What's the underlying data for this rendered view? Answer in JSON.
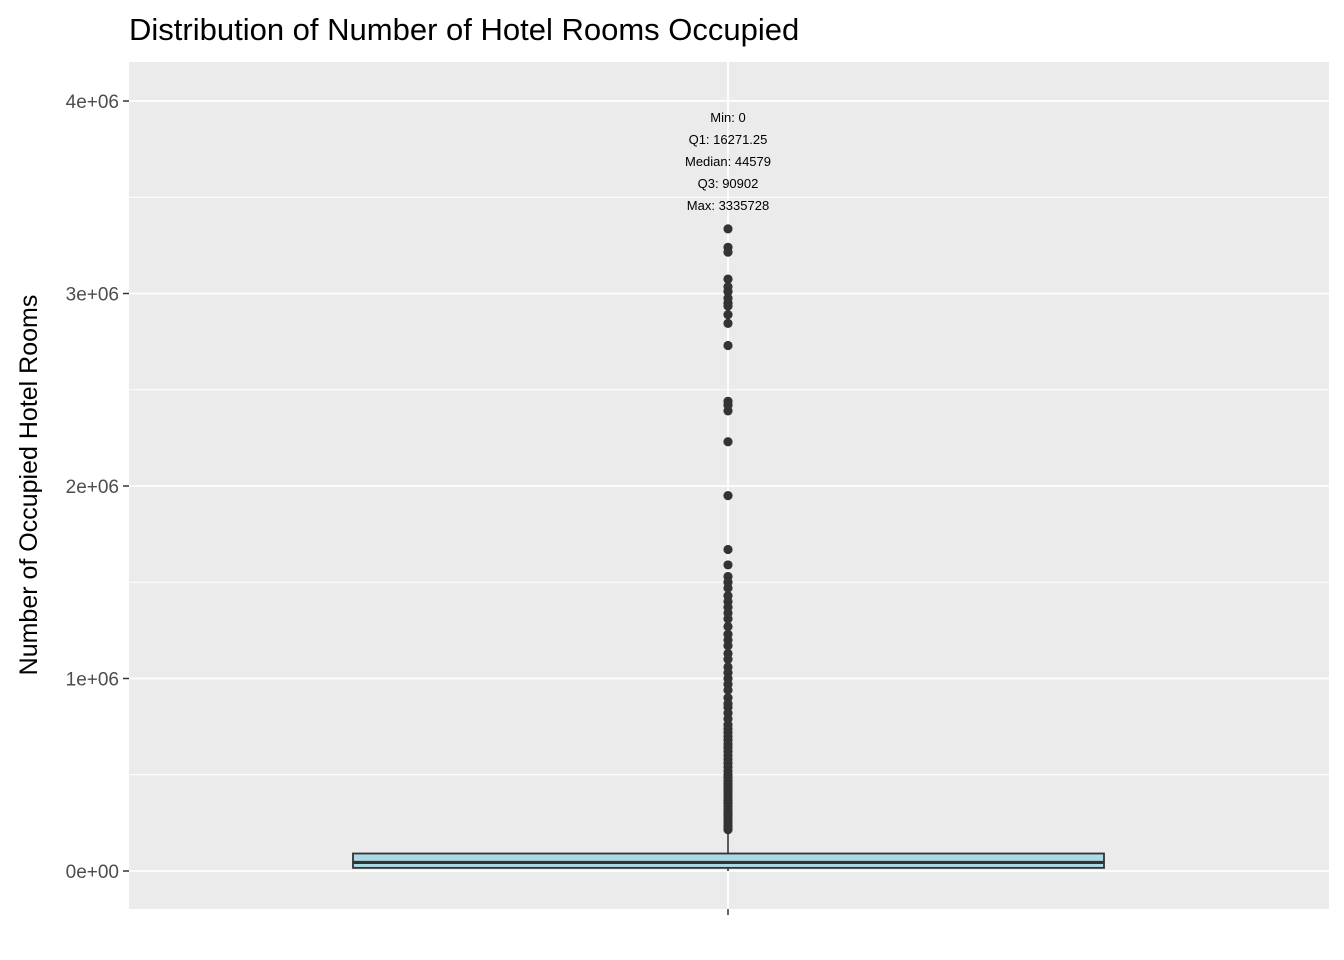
{
  "chart_data": {
    "type": "boxplot",
    "title": "Distribution of Number of Hotel Rooms Occupied",
    "xlabel": "",
    "ylabel": "Number of Occupied Hotel Rooms",
    "ylim": [
      -200000,
      4200000
    ],
    "y_ticks": [
      0,
      1000000,
      2000000,
      3000000,
      4000000
    ],
    "y_tick_labels": [
      "0e+00",
      "1e+06",
      "2e+06",
      "3e+06",
      "4e+06"
    ],
    "grid": true,
    "legend": "none",
    "colors": {
      "panel_bg": "#ebebeb",
      "grid_major": "#ffffff",
      "box_fill": "#add8e6",
      "box_stroke": "#333333",
      "outlier": "#333333"
    },
    "stats": {
      "min": 0,
      "q1": 16271.25,
      "median": 44579,
      "q3": 90902,
      "max": 3335728,
      "whisker_low": 0,
      "whisker_high": 202000
    },
    "annotation_lines": [
      "Min: 0",
      "Q1: 16271.25",
      "Median: 44579",
      "Q3: 90902",
      "Max: 3335728"
    ],
    "outliers": [
      3335728,
      3240000,
      3215000,
      3075000,
      3035000,
      3010000,
      2975000,
      2950000,
      2935000,
      2890000,
      2845000,
      2730000,
      2440000,
      2420000,
      2390000,
      2230000,
      1950000,
      1670000,
      1590000,
      1530000,
      1500000,
      1470000,
      1430000,
      1400000,
      1370000,
      1340000,
      1310000,
      1270000,
      1230000,
      1200000,
      1170000,
      1130000,
      1100000,
      1060000,
      1030000,
      1000000,
      970000,
      940000,
      900000,
      870000,
      850000,
      820000,
      790000,
      760000,
      740000,
      720000,
      700000,
      680000,
      660000,
      640000,
      620000,
      600000,
      580000,
      560000,
      540000,
      520000,
      500000,
      485000,
      470000,
      455000,
      440000,
      425000,
      410000,
      395000,
      380000,
      365000,
      350000,
      335000,
      320000,
      305000,
      290000,
      275000,
      260000,
      245000,
      230000,
      215000
    ]
  }
}
